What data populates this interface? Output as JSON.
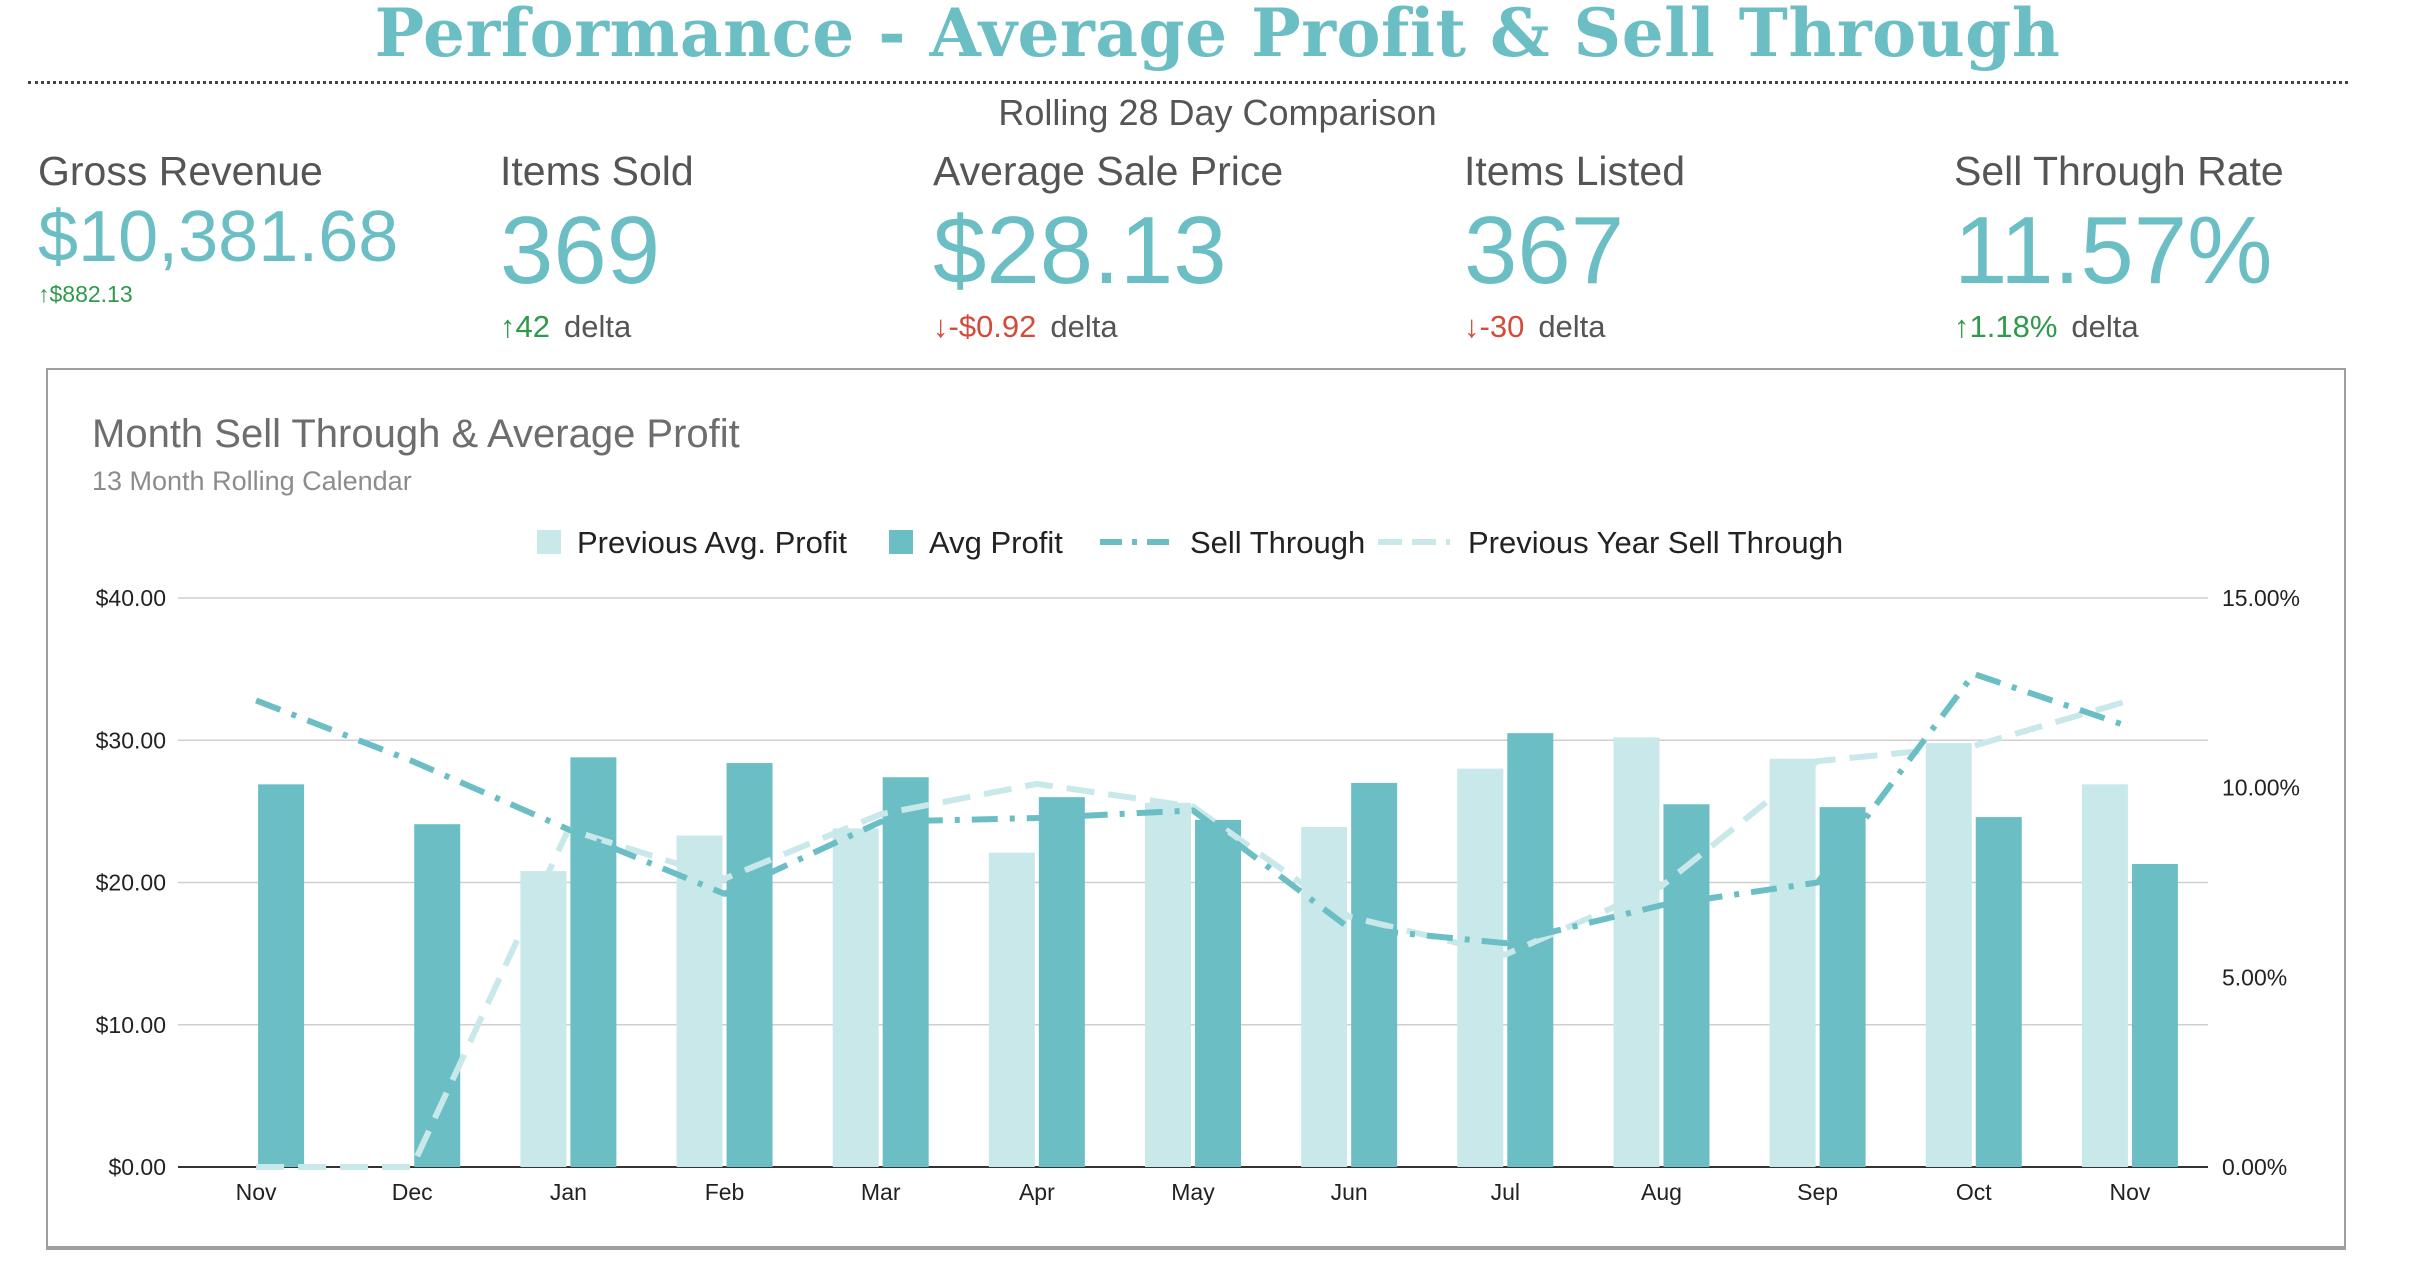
{
  "header": {
    "title": "Performance - Average Profit & Sell Through",
    "subtitle": "Rolling 28 Day Comparison"
  },
  "kpis": [
    {
      "label": "Gross Revenue",
      "value": "$10,381.68",
      "arrow": "↑",
      "delta": "$882.13",
      "delta_word": "",
      "direction": "up"
    },
    {
      "label": "Items Sold",
      "value": "369",
      "arrow": "↑",
      "delta": "42",
      "delta_word": "delta",
      "direction": "up"
    },
    {
      "label": "Average Sale Price",
      "value": "$28.13",
      "arrow": "↓",
      "delta": "-$0.92",
      "delta_word": "delta",
      "direction": "down"
    },
    {
      "label": "Items Listed",
      "value": "367",
      "arrow": "↓",
      "delta": "-30",
      "delta_word": "delta",
      "direction": "down"
    },
    {
      "label": "Sell Through Rate",
      "value": "11.57%",
      "arrow": "↑",
      "delta": "1.18%",
      "delta_word": "delta",
      "direction": "up"
    }
  ],
  "colors": {
    "accent": "#6bbfc4",
    "previous_profit": "#c9e8ea",
    "avg_profit": "#6bbfc4",
    "sell_through": "#6bbfc4",
    "prev_sell_through": "#c9e8ea",
    "up": "#2e9a4a",
    "down": "#d44b3a"
  },
  "chart_data": {
    "type": "bar",
    "title": "Month Sell Through & Average Profit",
    "subtitle": "13 Month Rolling Calendar",
    "categories": [
      "Nov",
      "Dec",
      "Jan",
      "Feb",
      "Mar",
      "Apr",
      "May",
      "Jun",
      "Jul",
      "Aug",
      "Sep",
      "Oct",
      "Nov"
    ],
    "left_axis": {
      "ylim": [
        0,
        40
      ],
      "ticks": [
        "$0.00",
        "$10.00",
        "$20.00",
        "$30.00",
        "$40.00"
      ],
      "tick_values": [
        0,
        10,
        20,
        30,
        40
      ]
    },
    "right_axis": {
      "ylim": [
        0,
        15
      ],
      "ticks": [
        "0.00%",
        "5.00%",
        "10.00%",
        "15.00%"
      ],
      "tick_values": [
        0,
        5,
        10,
        15
      ]
    },
    "grid": true,
    "legend_position": "top-center",
    "series": [
      {
        "name": "Previous Avg. Profit",
        "kind": "bar",
        "axis": "left",
        "values": [
          0,
          0,
          20.8,
          23.3,
          23.8,
          22.1,
          25.6,
          23.9,
          28.0,
          30.2,
          28.7,
          29.8,
          26.9
        ]
      },
      {
        "name": "Avg Profit",
        "kind": "bar",
        "axis": "left",
        "values": [
          26.9,
          24.1,
          28.8,
          28.4,
          27.4,
          26.0,
          24.4,
          27.0,
          30.5,
          25.5,
          25.3,
          24.6,
          21.3
        ]
      },
      {
        "name": "Sell Through",
        "kind": "line",
        "style": "dash-dot",
        "axis": "right",
        "values": [
          12.3,
          10.7,
          8.9,
          7.2,
          9.1,
          9.2,
          9.4,
          6.3,
          5.9,
          6.9,
          7.5,
          13.0,
          11.6
        ]
      },
      {
        "name": "Previous Year Sell Through",
        "kind": "line",
        "style": "dashed",
        "axis": "right",
        "values": [
          0.0,
          0.0,
          8.9,
          7.6,
          9.3,
          10.1,
          9.5,
          6.6,
          5.6,
          7.4,
          10.7,
          11.1,
          12.3
        ]
      }
    ]
  }
}
